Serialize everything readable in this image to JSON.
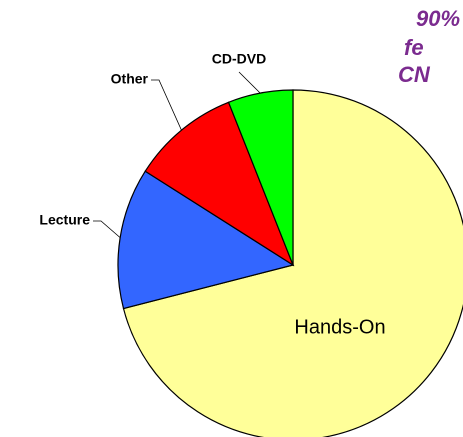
{
  "chart_data": {
    "type": "pie",
    "categories": [
      "Hands-On",
      "Lecture",
      "Other",
      "CD-DVD"
    ],
    "values": [
      71,
      13,
      10,
      6
    ],
    "colors": [
      "#ffff99",
      "#3366ff",
      "#ff0000",
      "#00ff00"
    ],
    "annotations": [
      "90%",
      "fe",
      "CN"
    ]
  }
}
